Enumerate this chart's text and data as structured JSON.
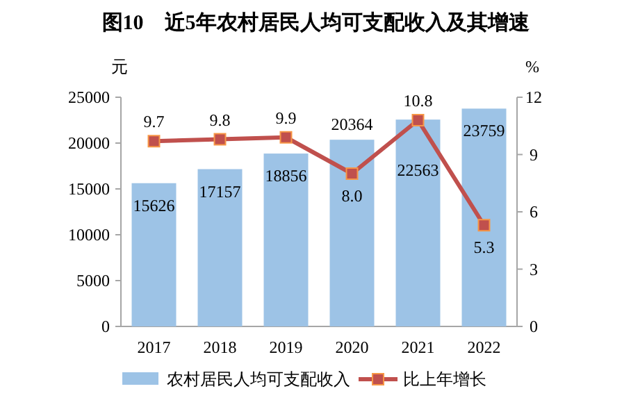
{
  "chart_data": {
    "type": "bar",
    "title": "图10　近5年农村居民人均可支配收入及其增速",
    "ylabel": "元",
    "y2label": "%",
    "categories": [
      "2017",
      "2018",
      "2019",
      "2020",
      "2021",
      "2022"
    ],
    "series": [
      {
        "name": "农村居民人均可支配收入",
        "color": "#9dc3e6",
        "values": [
          15626,
          17157,
          18856,
          20364,
          22563,
          23759
        ]
      },
      {
        "name": "比上年增长",
        "type": "line",
        "axis": "y2",
        "color": "#c0504d",
        "marker": "square",
        "values": [
          9.7,
          9.8,
          9.9,
          8.0,
          10.8,
          5.3
        ],
        "value_labels": [
          "9.7",
          "9.8",
          "9.9",
          "8.0",
          "10.8",
          "5.3"
        ]
      }
    ],
    "data_labels": true,
    "ylim": [
      0,
      25000
    ],
    "yticks": [
      0,
      5000,
      10000,
      15000,
      20000,
      25000
    ],
    "y2lim": [
      0,
      12
    ],
    "y2ticks": [
      0,
      3,
      6,
      9,
      12
    ],
    "legend": "bottom"
  }
}
